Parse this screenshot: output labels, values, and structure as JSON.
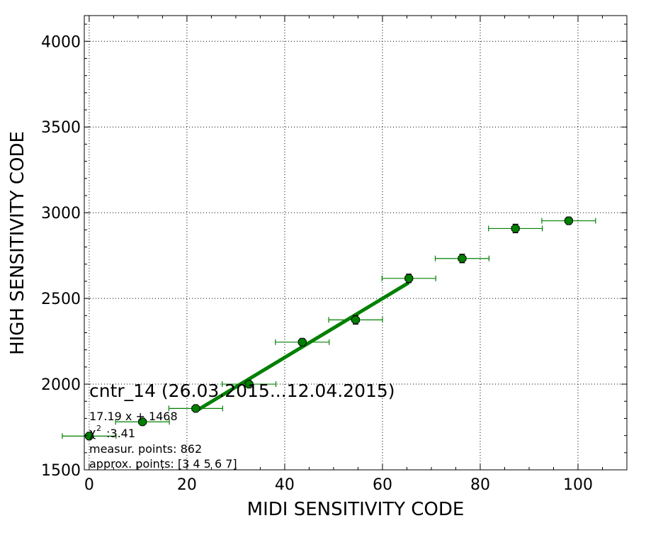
{
  "chart_data": {
    "type": "scatter",
    "title": "",
    "xlabel": "MIDI SENSITIVITY CODE",
    "ylabel": "HIGH SENSITIVITY CODE",
    "xlim": [
      -1,
      110
    ],
    "ylim": [
      1500,
      4150
    ],
    "grid": true,
    "x_ticks": [
      0,
      20,
      40,
      60,
      80,
      100
    ],
    "x_tick_labels": [
      "0",
      "20",
      "40",
      "60",
      "80",
      "100"
    ],
    "y_ticks": [
      1500,
      2000,
      2500,
      3000,
      3500,
      4000
    ],
    "y_tick_labels": [
      "1500",
      "2000",
      "2500",
      "3000",
      "3500",
      "4000"
    ],
    "points": [
      {
        "x": 0.0,
        "y": 1697,
        "xerr": 5.5,
        "yerr": 12
      },
      {
        "x": 10.9,
        "y": 1780,
        "xerr": 5.5,
        "yerr": 12
      },
      {
        "x": 21.8,
        "y": 1858,
        "xerr": 5.5,
        "yerr": 12
      },
      {
        "x": 32.7,
        "y": 2000,
        "xerr": 5.5,
        "yerr": 15
      },
      {
        "x": 43.6,
        "y": 2245,
        "xerr": 5.5,
        "yerr": 20
      },
      {
        "x": 54.5,
        "y": 2375,
        "xerr": 5.5,
        "yerr": 25
      },
      {
        "x": 65.4,
        "y": 2617,
        "xerr": 5.5,
        "yerr": 25
      },
      {
        "x": 76.3,
        "y": 2733,
        "xerr": 5.5,
        "yerr": 25
      },
      {
        "x": 87.2,
        "y": 2908,
        "xerr": 5.5,
        "yerr": 25
      },
      {
        "x": 98.1,
        "y": 2953,
        "xerr": 5.5,
        "yerr": 20
      }
    ],
    "fit": {
      "slope": 17.19,
      "intercept": 1468,
      "x_range": [
        21.8,
        65.4
      ]
    },
    "annotations": {
      "name": "cntr_14 (26.03.2015...12.04.2015)",
      "equation": "17.19 x + 1468",
      "chi_symbol": "χ",
      "chi_sup": "2",
      "chi_value": ":3.41",
      "measur": "measur. points: 862",
      "approx": "approx. points: [3 4 5 6 7]"
    },
    "colors": {
      "series": "#008000",
      "marker_fill": "#008000",
      "fit_line": "#008000",
      "grid": "#000000"
    }
  }
}
